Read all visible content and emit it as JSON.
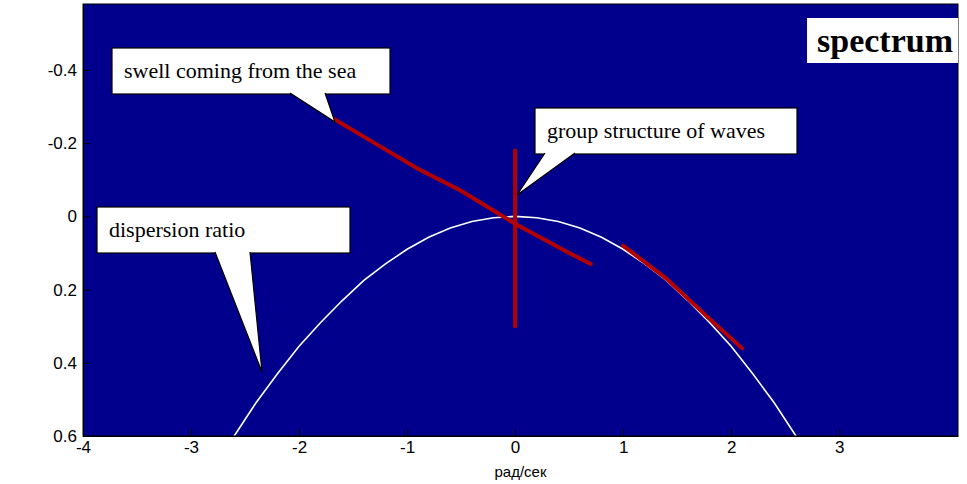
{
  "chart_data": {
    "type": "line",
    "title": "spectrum",
    "x_label": "рад/сек",
    "color": "#00008c",
    "xlim": [
      -4,
      4.1
    ],
    "xticks": [
      -4,
      -3,
      -2,
      -1,
      0,
      1,
      2,
      3
    ],
    "ylim": [
      -0.58,
      0.6
    ],
    "yticks": [
      -0.4,
      -0.2,
      0,
      0.2,
      0.4,
      0.6
    ],
    "grid": false,
    "series": [
      {
        "name": "dispersion ratio",
        "color": "#ffffff",
        "line_style": "solid",
        "x": [
          -2.6,
          -2.4,
          -2.2,
          -2.0,
          -1.8,
          -1.6,
          -1.4,
          -1.2,
          -1.0,
          -0.8,
          -0.6,
          -0.4,
          -0.2,
          0,
          0.2,
          0.4,
          0.6,
          0.8,
          1.0,
          1.2,
          1.4,
          1.6,
          1.8,
          2.0,
          2.2,
          2.4,
          2.6
        ],
        "values": [
          0.6,
          0.51,
          0.43,
          0.355,
          0.29,
          0.23,
          0.175,
          0.13,
          0.09,
          0.057,
          0.032,
          0.014,
          0.004,
          0,
          0.004,
          0.014,
          0.032,
          0.057,
          0.09,
          0.13,
          0.175,
          0.23,
          0.29,
          0.355,
          0.43,
          0.51,
          0.6
        ]
      },
      {
        "name": "swell coming from the sea",
        "color": "#b40000",
        "line_style": "solid",
        "x": [
          -1.7,
          -1.3,
          -0.9,
          -0.5,
          0,
          0.5,
          0.7,
          0.85,
          1.0,
          1.4,
          1.8,
          2.1
        ],
        "values": [
          -0.27,
          -0.2,
          -0.13,
          -0.07,
          0.02,
          0.1,
          0.13,
          null,
          0.08,
          0.17,
          0.28,
          0.36
        ]
      },
      {
        "name": "group structure of waves",
        "color": "#b40000",
        "line_style": "solid",
        "x": [
          0,
          0,
          0,
          0,
          0
        ],
        "values": [
          -0.18,
          -0.1,
          0,
          0.15,
          0.3
        ]
      }
    ]
  }
}
